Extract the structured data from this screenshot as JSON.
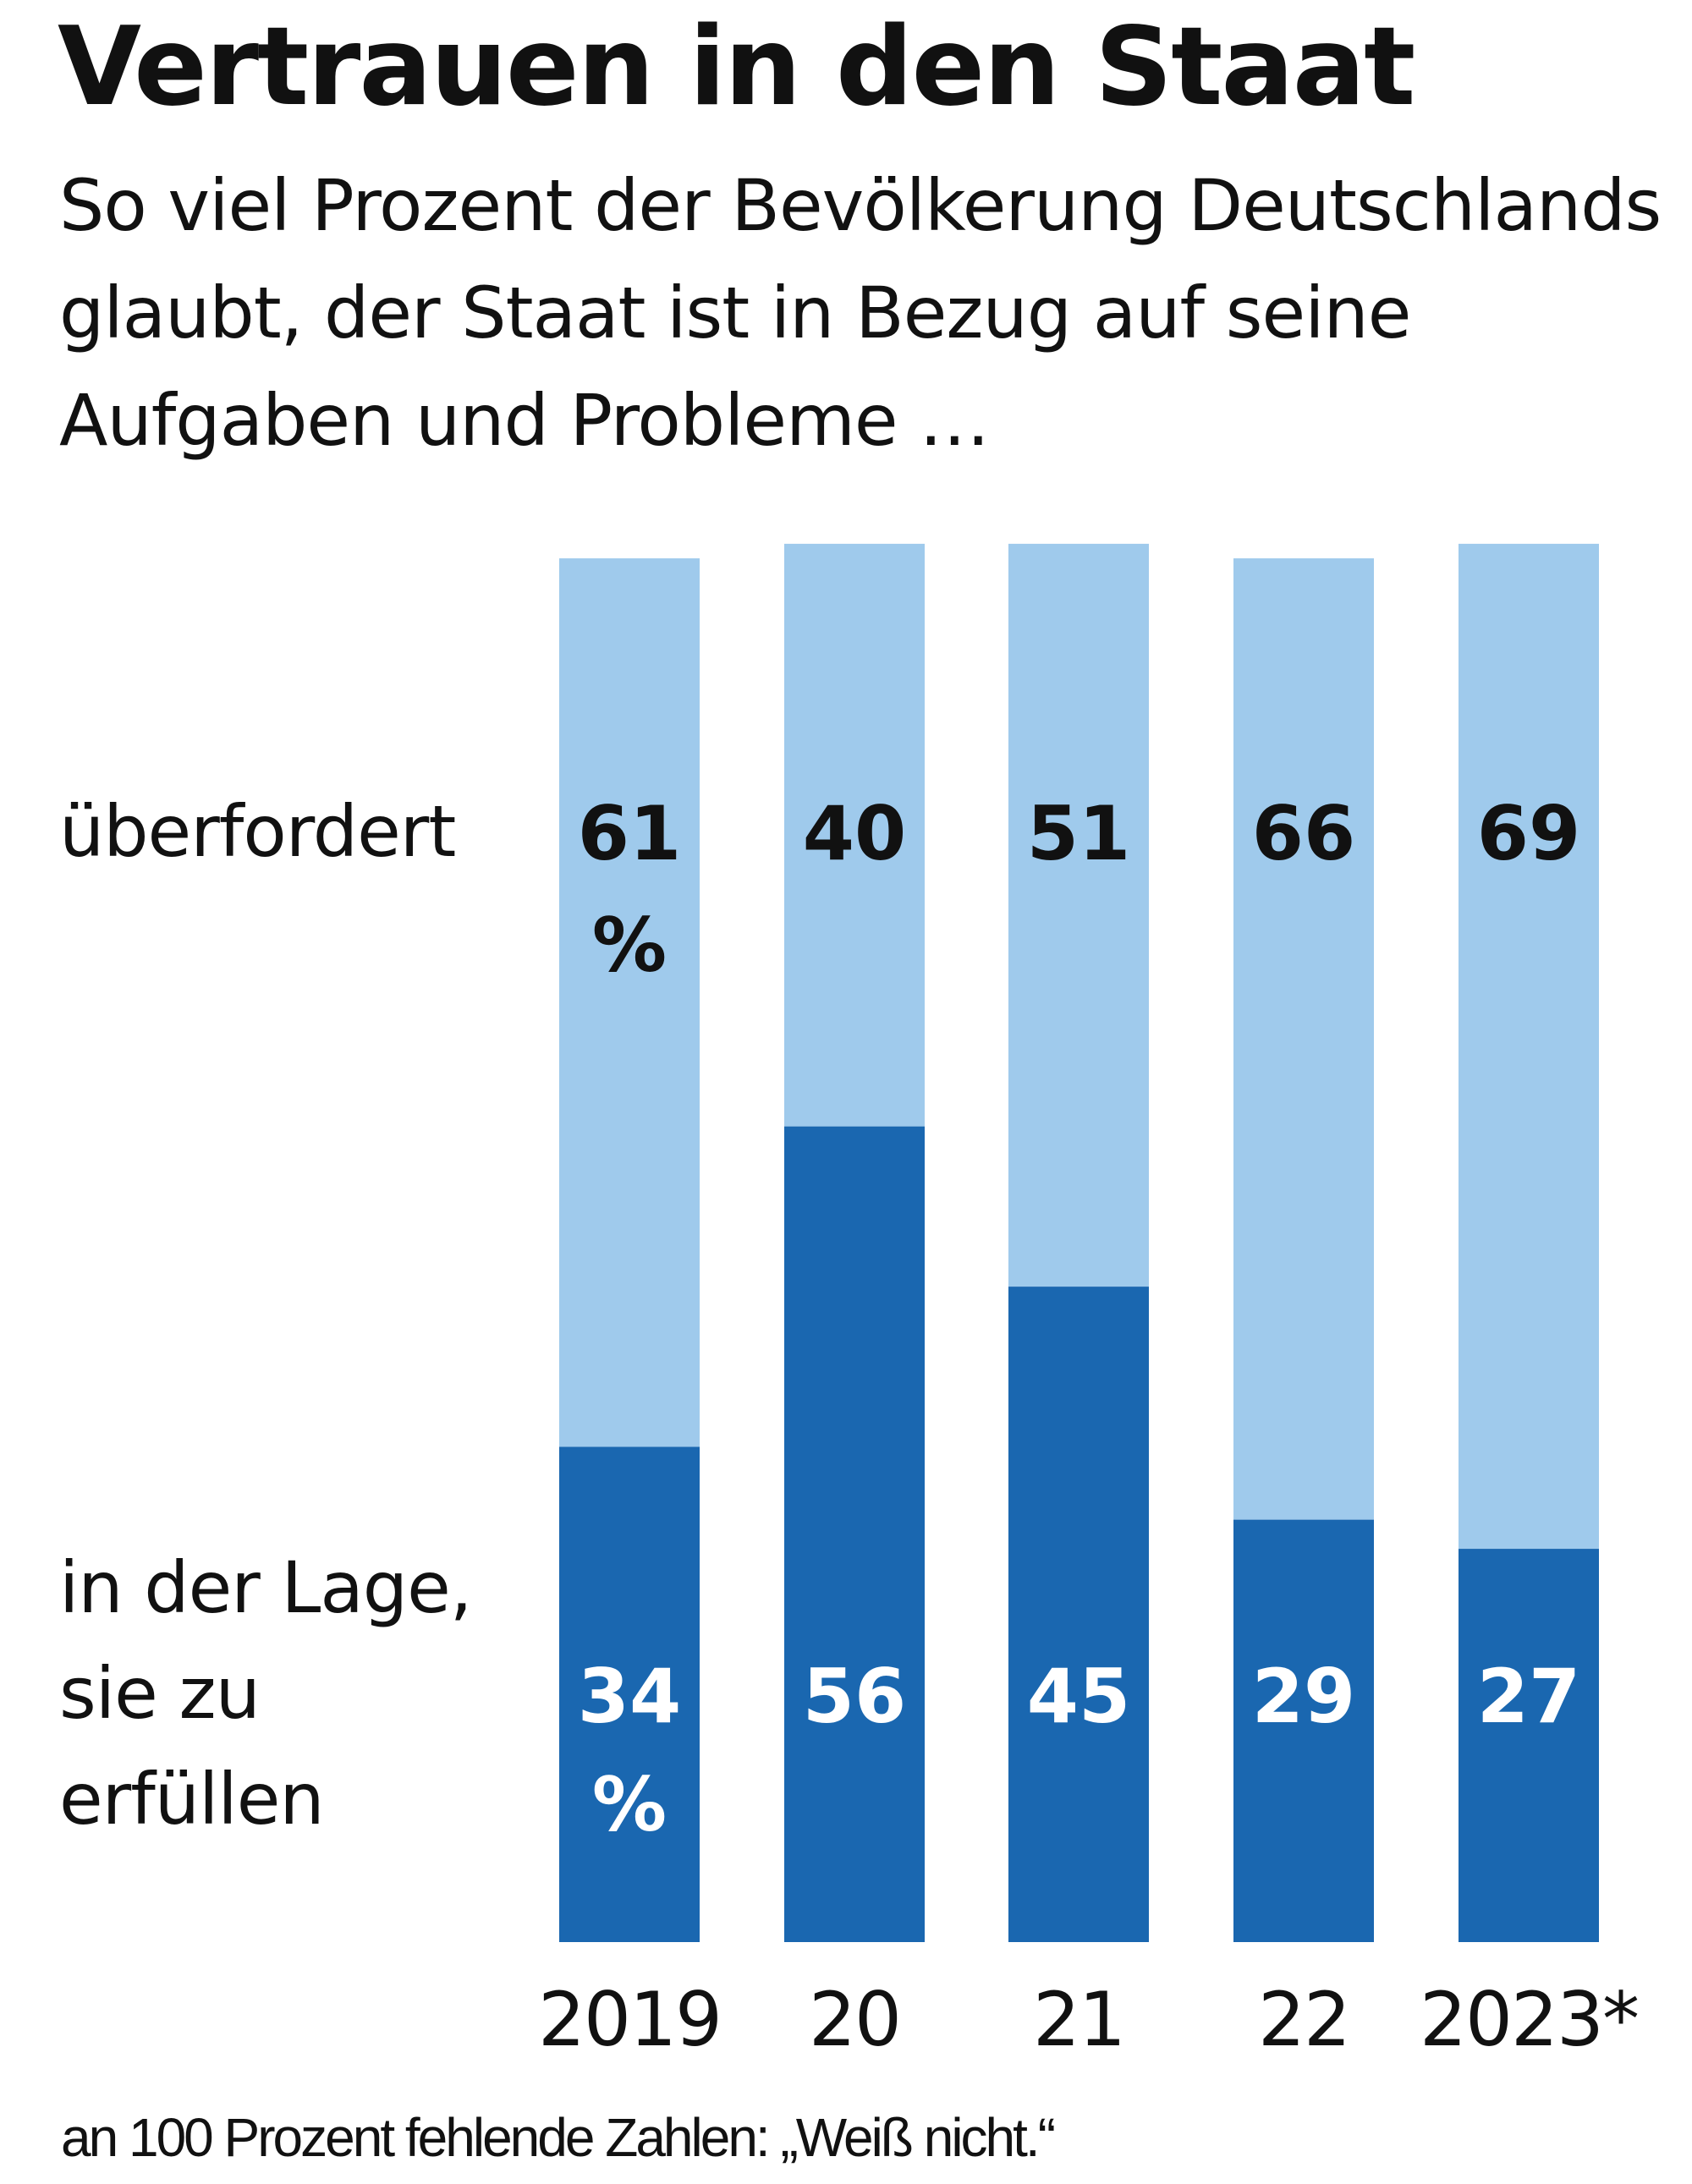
{
  "chart_data": {
    "type": "bar",
    "stacked": true,
    "title": "Vertrauen in den Staat",
    "subtitle": "So viel Prozent der Bevölkerung Deutschlands glaubt, der Staat ist in Bezug auf seine Aufgaben und Probleme …",
    "categories": [
      "2019",
      "20",
      "21",
      "22",
      "2023*"
    ],
    "series": [
      {
        "name": "in der Lage, sie zu erfüllen",
        "name_lines": [
          "in der Lage,",
          "sie zu",
          "erfüllen"
        ],
        "values": [
          34,
          56,
          45,
          29,
          27
        ],
        "color": "#1a67b0",
        "label_color": "#ffffff"
      },
      {
        "name": "überfordert",
        "name_lines": [
          "überfordert"
        ],
        "values": [
          61,
          40,
          51,
          66,
          69
        ],
        "color": "#9fcaec",
        "label_color": "#111111"
      }
    ],
    "unit_label": "%",
    "ylim": [
      0,
      100
    ],
    "grid": false,
    "footnote": "an 100 Prozent fehlende Zahlen: „Weiß nicht.“"
  }
}
